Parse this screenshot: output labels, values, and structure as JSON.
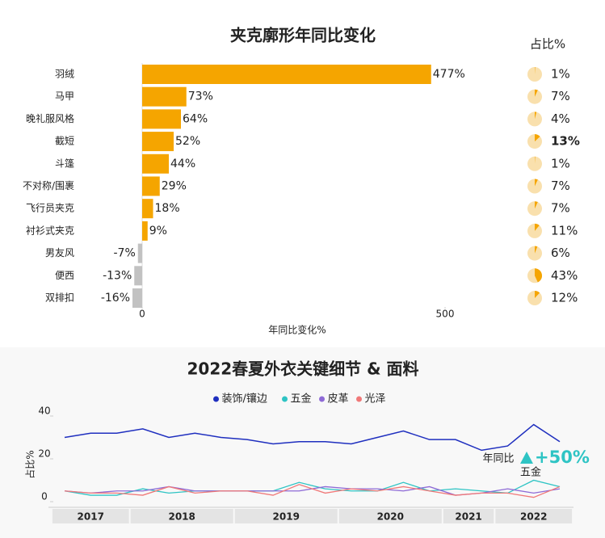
{
  "chart_data": [
    {
      "type": "bar",
      "title": "夹克廓形年同比变化",
      "categories": [
        "羽绒",
        "马甲",
        "晚礼服风格",
        "截短",
        "斗篷",
        "不对称/围裹",
        "飞行员夹克",
        "衬衫式夹克",
        "男友风",
        "便西",
        "双排扣"
      ],
      "values": [
        477,
        73,
        64,
        52,
        44,
        29,
        18,
        9,
        -7,
        -13,
        -16
      ],
      "value_labels": [
        "477%",
        "73%",
        "64%",
        "52%",
        "44%",
        "29%",
        "18%",
        "9%",
        "-7%",
        "-13%",
        "-16%"
      ],
      "color": "#f5a500",
      "negative_color": "#c2c2c2",
      "xlim": [
        -20,
        530
      ],
      "xticks": [
        0,
        500
      ],
      "xlabel": "年同比变化%",
      "share_title": "占比%",
      "share_values": [
        1,
        7,
        4,
        13,
        1,
        7,
        7,
        11,
        6,
        43,
        12
      ],
      "share_labels": [
        "1%",
        "7%",
        "4%",
        "13%",
        "1%",
        "7%",
        "7%",
        "11%",
        "6%",
        "43%",
        "12%"
      ],
      "share_highlight": 3,
      "share_color": "#f5a500",
      "share_background": "#f9e0ad"
    },
    {
      "type": "line",
      "title": "2022春夏外衣关键细节 & 面料",
      "categories": [
        null,
        null,
        null,
        null,
        null,
        null,
        null,
        null,
        null,
        null,
        null,
        null,
        null,
        null,
        null,
        null,
        null,
        null,
        null,
        null
      ],
      "year_groups": [
        {
          "label": "2017",
          "count": 3
        },
        {
          "label": "2018",
          "count": 4
        },
        {
          "label": "2019",
          "count": 4
        },
        {
          "label": "2020",
          "count": 4
        },
        {
          "label": "2021",
          "count": 2
        },
        {
          "label": "2022",
          "count": 3
        }
      ],
      "ylabel": "占比%",
      "ylim": [
        0,
        45
      ],
      "yticks": [
        0,
        20,
        40
      ],
      "series": [
        {
          "name": "装饰/镶边",
          "color": "#1f2fbf",
          "values": [
            30,
            32,
            32,
            34,
            30,
            32,
            30,
            29,
            27,
            28,
            28,
            27,
            30,
            33,
            29,
            29,
            24,
            26,
            36,
            28
          ]
        },
        {
          "name": "五金",
          "color": "#2ec4c4",
          "values": [
            5,
            3,
            3,
            6,
            4,
            5,
            5,
            5,
            5,
            9,
            6,
            5,
            5,
            9,
            5,
            6,
            5,
            4,
            10,
            7
          ]
        },
        {
          "name": "皮革",
          "color": "#8e6ad6",
          "values": [
            5,
            4,
            5,
            5,
            7,
            5,
            5,
            5,
            5,
            5,
            7,
            6,
            6,
            5,
            7,
            3,
            4,
            6,
            4,
            6
          ]
        },
        {
          "name": "光泽",
          "color": "#f07878",
          "values": [
            5,
            4,
            4,
            3,
            7,
            4,
            5,
            5,
            3,
            8,
            4,
            6,
            5,
            7,
            5,
            3,
            4,
            4,
            2,
            7
          ]
        }
      ],
      "annotation": {
        "label": "年同比",
        "value": "+50%",
        "series": "五金",
        "color": "#2ec4c4"
      }
    }
  ]
}
